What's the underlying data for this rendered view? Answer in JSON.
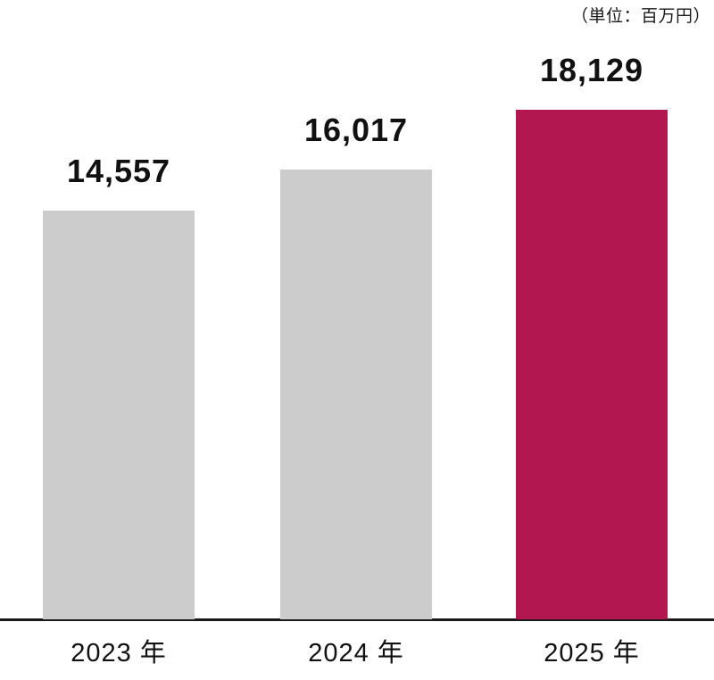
{
  "unit_label": "（単位：百万円）",
  "chart_data": {
    "type": "bar",
    "title": "",
    "xlabel": "",
    "ylabel": "",
    "unit": "（単位：百万円）",
    "categories": [
      "2023 年",
      "2024 年",
      "2025 年"
    ],
    "values": [
      14557,
      16017,
      18129
    ],
    "value_labels": [
      "14,557",
      "16,017",
      "18,129"
    ],
    "ylim": [
      0,
      18129
    ],
    "grid": false,
    "legend": "none",
    "bar_colors": [
      "#cccccc",
      "#cccccc",
      "#b2174f"
    ],
    "default_bar_color": "#cccccc",
    "highlight_bar_color": "#b2174f",
    "baseline_color": "#1a1a1a"
  }
}
